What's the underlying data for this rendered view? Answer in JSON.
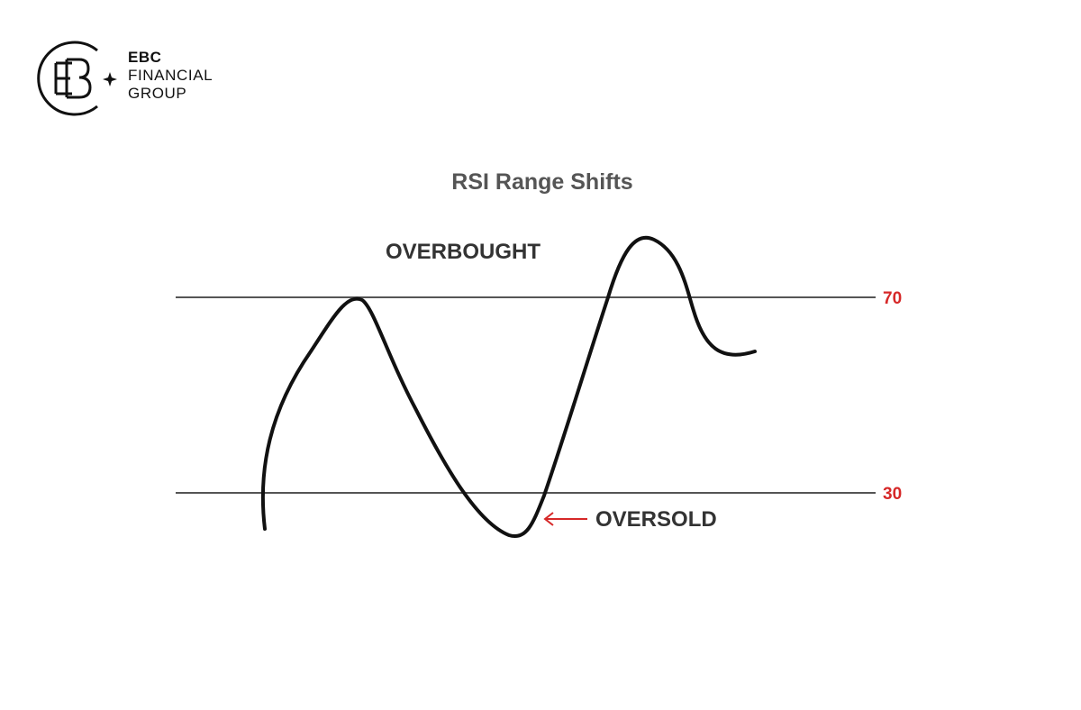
{
  "brand": {
    "line1": "EBC",
    "line2": "FINANCIAL",
    "line3": "GROUP"
  },
  "diagram": {
    "title": "RSI Range Shifts",
    "overbought_label": "OVERBOUGHT",
    "oversold_label": "OVERSOLD",
    "upper_level": "70",
    "lower_level": "30",
    "colors": {
      "line": "#555555",
      "curve": "#111111",
      "accent": "#d62828",
      "title": "#555555"
    }
  }
}
